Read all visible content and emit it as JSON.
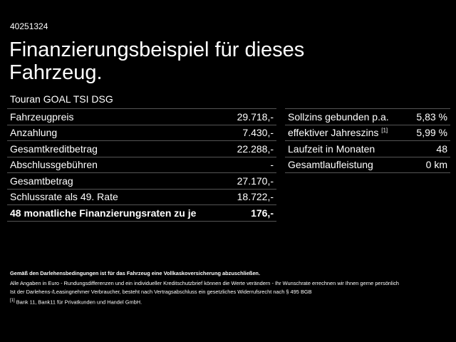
{
  "header": {
    "id": "40251324",
    "title": "Finanzierungsbeispiel für dieses Fahrzeug.",
    "model": "Touran GOAL TSI DSG"
  },
  "left_table": {
    "rows": [
      {
        "label": "Fahrzeugpreis",
        "value": "29.718,-"
      },
      {
        "label": "Anzahlung",
        "value": "7.430,-"
      },
      {
        "label": "Gesamtkreditbetrag",
        "value": "22.288,-"
      },
      {
        "label": "Abschlussgebühren",
        "value": "-"
      },
      {
        "label": "Gesamtbetrag",
        "value": "27.170,-"
      },
      {
        "label": "Schlussrate als 49. Rate",
        "value": "18.722,-"
      },
      {
        "label": "48 monatliche Finanzierungsraten zu je",
        "value": "176,-"
      }
    ]
  },
  "right_table": {
    "rows": [
      {
        "label": "Sollzins gebunden p.a.",
        "value": "5,83 %"
      },
      {
        "label": "effektiver Jahreszins",
        "note": "[1]",
        "value": "5,99 %"
      },
      {
        "label": "Laufzeit in Monaten",
        "value": "48"
      },
      {
        "label": "Gesamtlaufleistung",
        "value": "0 km"
      }
    ]
  },
  "footnotes": {
    "insurance": "Gemäß den Darlehensbedingungen ist für das Fahrzeug eine Vollkaskoversicherung abzuschließen.",
    "info_1": "Alle Angaben in Euro - Rundungsdifferenzen und ein individueller Kreditschutzbrief können die Werte verändern - Ihr Wunschrate errechnen wir Ihnen gerne persönlich",
    "info_2": "Ist der Darlehens-/Leasingnehmer Verbraucher, besteht nach Vertragsabschluss ein gesetzliches Widerrufsrecht nach § 495 BGB",
    "note_marker": "[1]",
    "note_text": "Bank 11, Bank11 für Privatkunden und Handel GmbH."
  }
}
